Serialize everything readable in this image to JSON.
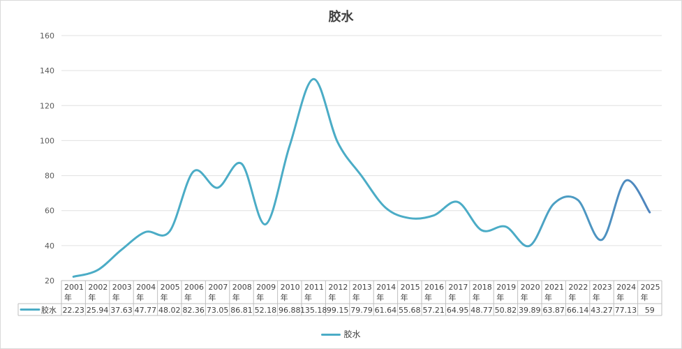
{
  "chart_data": {
    "type": "line",
    "title": "胶水",
    "categories": [
      "2001年",
      "2002年",
      "2003年",
      "2004年",
      "2005年",
      "2006年",
      "2007年",
      "2008年",
      "2009年",
      "2010年",
      "2011年",
      "2012年",
      "2013年",
      "2014年",
      "2015年",
      "2016年",
      "2017年",
      "2018年",
      "2019年",
      "2020年",
      "2021年",
      "2022年",
      "2023年",
      "2024年",
      "2025年"
    ],
    "category_lines": [
      [
        "2001",
        "年"
      ],
      [
        "2002",
        "年"
      ],
      [
        "2003",
        "年"
      ],
      [
        "2004",
        "年"
      ],
      [
        "2005",
        "年"
      ],
      [
        "2006",
        "年"
      ],
      [
        "2007",
        "年"
      ],
      [
        "2008",
        "年"
      ],
      [
        "2009",
        "年"
      ],
      [
        "2010",
        "年"
      ],
      [
        "2011",
        "年"
      ],
      [
        "2012",
        "年"
      ],
      [
        "2013",
        "年"
      ],
      [
        "2014",
        "年"
      ],
      [
        "2015",
        "年"
      ],
      [
        "2016",
        "年"
      ],
      [
        "2017",
        "年"
      ],
      [
        "2018",
        "年"
      ],
      [
        "2019",
        "年"
      ],
      [
        "2020",
        "年"
      ],
      [
        "2021",
        "年"
      ],
      [
        "2022",
        "年"
      ],
      [
        "2023",
        "年"
      ],
      [
        "2024",
        "年"
      ],
      [
        "2025",
        "年"
      ]
    ],
    "series": [
      {
        "name": "胶水",
        "values": [
          22.23,
          25.94,
          37.63,
          47.77,
          48.02,
          82.36,
          73.05,
          86.81,
          52.18,
          96.88,
          135.18,
          99.15,
          79.79,
          61.64,
          55.68,
          57.21,
          64.95,
          48.77,
          50.82,
          39.89,
          63.87,
          66.14,
          43.27,
          77.13,
          59
        ],
        "value_labels": [
          "22.23",
          "25.94",
          "37.63",
          "47.77",
          "48.02",
          "82.36",
          "73.05",
          "86.81",
          "52.18",
          "96.88",
          "135.18",
          "99.15",
          "79.79",
          "61.64",
          "55.68",
          "57.21",
          "64.95",
          "48.77",
          "50.82",
          "39.89",
          "63.87",
          "66.14",
          "43.27",
          "77.13",
          "59"
        ],
        "color": "#4bacc6",
        "late_color": "#4f81bd"
      }
    ],
    "y_ticks": [
      "20",
      "40",
      "60",
      "80",
      "100",
      "120",
      "140",
      "160"
    ],
    "ylim": [
      20,
      160
    ],
    "grid": true,
    "data_table": true,
    "legend_position": "bottom"
  }
}
